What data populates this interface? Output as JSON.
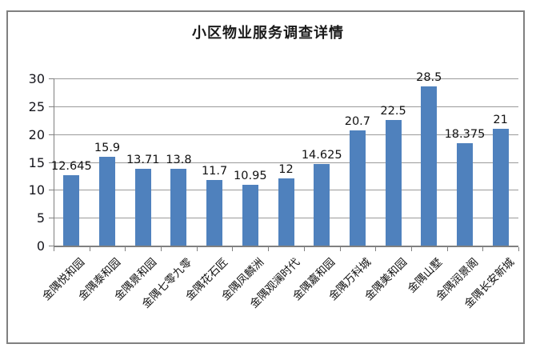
{
  "chart_data": {
    "type": "bar",
    "title": "小区物业服务调查详情",
    "categories": [
      "金隅悦和园",
      "金隅泰和园",
      "金隅景和园",
      "金隅七零九零",
      "金隅花石匠",
      "金隅凤麟洲",
      "金隅观澜时代",
      "金隅嘉和园",
      "金隅万科城",
      "金隅美和园",
      "金隅山墅",
      "金隅润景阁",
      "金隅长安新城"
    ],
    "values": [
      12.645,
      15.9,
      13.71,
      13.8,
      11.7,
      10.95,
      12,
      14.625,
      20.7,
      22.5,
      28.5,
      18.375,
      21
    ],
    "data_labels": [
      "12.645",
      "15.9",
      "13.71",
      "13.8",
      "11.7",
      "10.95",
      "12",
      "14.625",
      "20.7",
      "22.5",
      "28.5",
      "18.375",
      "21"
    ],
    "yticks": [
      0,
      5,
      10,
      15,
      20,
      25,
      30
    ],
    "ylim": [
      0,
      30
    ],
    "xlabel": "",
    "ylabel": "",
    "grid": true,
    "legend": "none",
    "colors": {
      "bar": "#4F81BD",
      "gridline": "#9a9a9a",
      "axis": "#808080",
      "frame_border": "#808080",
      "title_text": "#1a1a1a",
      "label_text": "#111111"
    }
  }
}
